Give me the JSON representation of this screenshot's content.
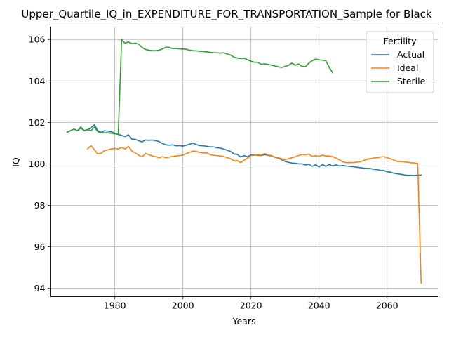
{
  "chart_data": {
    "type": "line",
    "title": "Upper_Quartile_IQ_in_EXPENDITURE_FOR_TRANSPORTATION_Sample for Black",
    "xlabel": "Years",
    "ylabel": "IQ",
    "xlim": [
      1961,
      2075
    ],
    "ylim": [
      93.6,
      106.6
    ],
    "x_ticks": [
      1980,
      2000,
      2020,
      2040,
      2060
    ],
    "y_ticks": [
      94,
      96,
      98,
      100,
      102,
      104,
      106
    ],
    "grid": true,
    "legend": {
      "title": "Fertility",
      "placement": "top-right"
    },
    "series": [
      {
        "name": "Actual",
        "color": "#1f77b4",
        "points": [
          [
            1966,
            101.53
          ],
          [
            1968,
            101.68
          ],
          [
            1969,
            101.6
          ],
          [
            1970,
            101.78
          ],
          [
            1971,
            101.6
          ],
          [
            1972,
            101.65
          ],
          [
            1973,
            101.75
          ],
          [
            1974,
            101.88
          ],
          [
            1975,
            101.6
          ],
          [
            1976,
            101.52
          ],
          [
            1977,
            101.6
          ],
          [
            1978,
            101.58
          ],
          [
            1979,
            101.55
          ],
          [
            1980,
            101.48
          ],
          [
            1981,
            101.42
          ],
          [
            1982,
            101.38
          ],
          [
            1983,
            101.32
          ],
          [
            1984,
            101.4
          ],
          [
            1985,
            101.2
          ],
          [
            1986,
            101.18
          ],
          [
            1987,
            101.12
          ],
          [
            1988,
            101.06
          ],
          [
            1989,
            101.15
          ],
          [
            1990,
            101.14
          ],
          [
            1991,
            101.15
          ],
          [
            1992,
            101.12
          ],
          [
            1993,
            101.08
          ],
          [
            1994,
            100.98
          ],
          [
            1995,
            100.92
          ],
          [
            1996,
            100.9
          ],
          [
            1997,
            100.92
          ],
          [
            1998,
            100.87
          ],
          [
            1999,
            100.88
          ],
          [
            2000,
            100.86
          ],
          [
            2001,
            100.9
          ],
          [
            2002,
            100.95
          ],
          [
            2003,
            101.0
          ],
          [
            2004,
            100.93
          ],
          [
            2005,
            100.88
          ],
          [
            2006,
            100.87
          ],
          [
            2007,
            100.85
          ],
          [
            2008,
            100.82
          ],
          [
            2009,
            100.82
          ],
          [
            2010,
            100.78
          ],
          [
            2011,
            100.76
          ],
          [
            2012,
            100.72
          ],
          [
            2013,
            100.66
          ],
          [
            2014,
            100.6
          ],
          [
            2015,
            100.48
          ],
          [
            2016,
            100.46
          ],
          [
            2017,
            100.33
          ],
          [
            2018,
            100.4
          ],
          [
            2019,
            100.34
          ],
          [
            2020,
            100.44
          ],
          [
            2021,
            100.43
          ],
          [
            2022,
            100.42
          ],
          [
            2023,
            100.4
          ],
          [
            2024,
            100.45
          ],
          [
            2025,
            100.42
          ],
          [
            2026,
            100.38
          ],
          [
            2027,
            100.32
          ],
          [
            2028,
            100.28
          ],
          [
            2029,
            100.2
          ],
          [
            2030,
            100.12
          ],
          [
            2031,
            100.08
          ],
          [
            2032,
            100.04
          ],
          [
            2033,
            100.03
          ],
          [
            2034,
            100.0
          ],
          [
            2035,
            100.0
          ],
          [
            2036,
            99.95
          ],
          [
            2037,
            99.98
          ],
          [
            2038,
            99.88
          ],
          [
            2039,
            99.96
          ],
          [
            2040,
            99.85
          ],
          [
            2041,
            99.97
          ],
          [
            2042,
            99.88
          ],
          [
            2043,
            99.97
          ],
          [
            2044,
            99.9
          ],
          [
            2045,
            99.95
          ],
          [
            2046,
            99.9
          ],
          [
            2047,
            99.92
          ],
          [
            2048,
            99.9
          ],
          [
            2049,
            99.88
          ],
          [
            2050,
            99.86
          ],
          [
            2051,
            99.84
          ],
          [
            2052,
            99.82
          ],
          [
            2053,
            99.8
          ],
          [
            2054,
            99.78
          ],
          [
            2055,
            99.78
          ],
          [
            2056,
            99.74
          ],
          [
            2057,
            99.73
          ],
          [
            2058,
            99.68
          ],
          [
            2059,
            99.68
          ],
          [
            2060,
            99.62
          ],
          [
            2061,
            99.6
          ],
          [
            2062,
            99.55
          ],
          [
            2063,
            99.52
          ],
          [
            2064,
            99.5
          ],
          [
            2065,
            99.47
          ],
          [
            2066,
            99.45
          ],
          [
            2067,
            99.45
          ],
          [
            2068,
            99.44
          ],
          [
            2069,
            99.46
          ],
          [
            2070,
            99.46
          ]
        ]
      },
      {
        "name": "Ideal",
        "color": "#ff7f0e",
        "points": [
          [
            1972,
            100.73
          ],
          [
            1973,
            100.88
          ],
          [
            1974,
            100.68
          ],
          [
            1975,
            100.48
          ],
          [
            1976,
            100.52
          ],
          [
            1977,
            100.65
          ],
          [
            1978,
            100.68
          ],
          [
            1979,
            100.72
          ],
          [
            1980,
            100.75
          ],
          [
            1981,
            100.72
          ],
          [
            1982,
            100.8
          ],
          [
            1983,
            100.72
          ],
          [
            1984,
            100.85
          ],
          [
            1985,
            100.62
          ],
          [
            1986,
            100.53
          ],
          [
            1987,
            100.42
          ],
          [
            1988,
            100.34
          ],
          [
            1989,
            100.5
          ],
          [
            1990,
            100.45
          ],
          [
            1991,
            100.38
          ],
          [
            1992,
            100.35
          ],
          [
            1993,
            100.3
          ],
          [
            1994,
            100.35
          ],
          [
            1995,
            100.3
          ],
          [
            1996,
            100.33
          ],
          [
            1997,
            100.36
          ],
          [
            1998,
            100.38
          ],
          [
            1999,
            100.4
          ],
          [
            2000,
            100.42
          ],
          [
            2001,
            100.5
          ],
          [
            2002,
            100.56
          ],
          [
            2003,
            100.62
          ],
          [
            2004,
            100.6
          ],
          [
            2005,
            100.55
          ],
          [
            2006,
            100.53
          ],
          [
            2007,
            100.53
          ],
          [
            2008,
            100.45
          ],
          [
            2009,
            100.42
          ],
          [
            2010,
            100.4
          ],
          [
            2011,
            100.38
          ],
          [
            2012,
            100.36
          ],
          [
            2013,
            100.3
          ],
          [
            2014,
            100.25
          ],
          [
            2015,
            100.15
          ],
          [
            2016,
            100.16
          ],
          [
            2017,
            100.06
          ],
          [
            2018,
            100.18
          ],
          [
            2019,
            100.28
          ],
          [
            2020,
            100.4
          ],
          [
            2021,
            100.42
          ],
          [
            2022,
            100.44
          ],
          [
            2023,
            100.42
          ],
          [
            2024,
            100.5
          ],
          [
            2025,
            100.44
          ],
          [
            2026,
            100.4
          ],
          [
            2027,
            100.33
          ],
          [
            2028,
            100.3
          ],
          [
            2029,
            100.25
          ],
          [
            2030,
            100.2
          ],
          [
            2031,
            100.25
          ],
          [
            2032,
            100.3
          ],
          [
            2033,
            100.34
          ],
          [
            2034,
            100.4
          ],
          [
            2035,
            100.46
          ],
          [
            2036,
            100.44
          ],
          [
            2037,
            100.48
          ],
          [
            2038,
            100.36
          ],
          [
            2039,
            100.4
          ],
          [
            2040,
            100.37
          ],
          [
            2041,
            100.42
          ],
          [
            2042,
            100.38
          ],
          [
            2043,
            100.38
          ],
          [
            2044,
            100.35
          ],
          [
            2045,
            100.28
          ],
          [
            2046,
            100.2
          ],
          [
            2047,
            100.1
          ],
          [
            2048,
            100.06
          ],
          [
            2049,
            100.07
          ],
          [
            2050,
            100.06
          ],
          [
            2051,
            100.08
          ],
          [
            2052,
            100.1
          ],
          [
            2053,
            100.15
          ],
          [
            2054,
            100.22
          ],
          [
            2055,
            100.25
          ],
          [
            2056,
            100.28
          ],
          [
            2057,
            100.3
          ],
          [
            2058,
            100.33
          ],
          [
            2059,
            100.35
          ],
          [
            2060,
            100.3
          ],
          [
            2061,
            100.25
          ],
          [
            2062,
            100.18
          ],
          [
            2063,
            100.12
          ],
          [
            2064,
            100.12
          ],
          [
            2065,
            100.1
          ],
          [
            2066,
            100.08
          ],
          [
            2067,
            100.05
          ],
          [
            2068,
            100.05
          ],
          [
            2069,
            100.02
          ],
          [
            2070,
            94.25
          ]
        ]
      },
      {
        "name": "Sterile",
        "color": "#2ca02c",
        "points": [
          [
            1966,
            101.53
          ],
          [
            1968,
            101.68
          ],
          [
            1969,
            101.6
          ],
          [
            1970,
            101.72
          ],
          [
            1971,
            101.62
          ],
          [
            1972,
            101.65
          ],
          [
            1973,
            101.6
          ],
          [
            1974,
            101.78
          ],
          [
            1975,
            101.55
          ],
          [
            1976,
            101.5
          ],
          [
            1977,
            101.5
          ],
          [
            1978,
            101.5
          ],
          [
            1979,
            101.48
          ],
          [
            1980,
            101.45
          ],
          [
            1981,
            101.42
          ],
          [
            1982,
            106.0
          ],
          [
            1983,
            105.82
          ],
          [
            1984,
            105.88
          ],
          [
            1985,
            105.8
          ],
          [
            1986,
            105.82
          ],
          [
            1987,
            105.78
          ],
          [
            1988,
            105.62
          ],
          [
            1989,
            105.52
          ],
          [
            1990,
            105.48
          ],
          [
            1991,
            105.46
          ],
          [
            1992,
            105.46
          ],
          [
            1993,
            105.48
          ],
          [
            1994,
            105.55
          ],
          [
            1995,
            105.62
          ],
          [
            1996,
            105.62
          ],
          [
            1997,
            105.56
          ],
          [
            1998,
            105.57
          ],
          [
            1999,
            105.55
          ],
          [
            2000,
            105.54
          ],
          [
            2001,
            105.53
          ],
          [
            2002,
            105.48
          ],
          [
            2003,
            105.46
          ],
          [
            2004,
            105.45
          ],
          [
            2005,
            105.43
          ],
          [
            2006,
            105.42
          ],
          [
            2007,
            105.4
          ],
          [
            2008,
            105.38
          ],
          [
            2009,
            105.36
          ],
          [
            2010,
            105.36
          ],
          [
            2011,
            105.34
          ],
          [
            2012,
            105.36
          ],
          [
            2013,
            105.3
          ],
          [
            2014,
            105.25
          ],
          [
            2015,
            105.15
          ],
          [
            2016,
            105.1
          ],
          [
            2017,
            105.08
          ],
          [
            2018,
            105.1
          ],
          [
            2019,
            105.02
          ],
          [
            2020,
            104.96
          ],
          [
            2021,
            104.9
          ],
          [
            2022,
            104.9
          ],
          [
            2023,
            104.8
          ],
          [
            2024,
            104.82
          ],
          [
            2025,
            104.8
          ],
          [
            2026,
            104.76
          ],
          [
            2027,
            104.72
          ],
          [
            2028,
            104.68
          ],
          [
            2029,
            104.65
          ],
          [
            2030,
            104.7
          ],
          [
            2031,
            104.75
          ],
          [
            2032,
            104.86
          ],
          [
            2033,
            104.76
          ],
          [
            2034,
            104.82
          ],
          [
            2035,
            104.7
          ],
          [
            2036,
            104.68
          ],
          [
            2037,
            104.86
          ],
          [
            2038,
            104.98
          ],
          [
            2039,
            105.05
          ],
          [
            2040,
            105.02
          ],
          [
            2041,
            105.0
          ],
          [
            2042,
            104.98
          ],
          [
            2043,
            104.65
          ],
          [
            2044,
            104.4
          ]
        ]
      }
    ]
  }
}
